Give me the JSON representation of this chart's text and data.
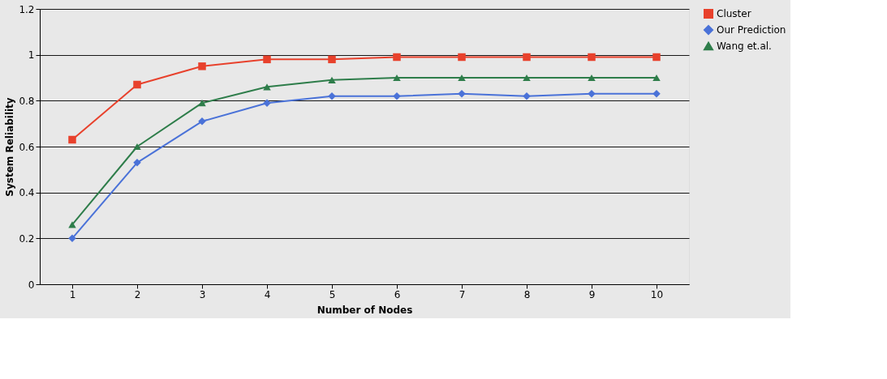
{
  "chart_data": {
    "type": "line",
    "xlabel": "Number of Nodes",
    "ylabel": "System Reliability",
    "categories": [
      "1",
      "2",
      "3",
      "4",
      "5",
      "6",
      "7",
      "8",
      "9",
      "10"
    ],
    "series": [
      {
        "name": "Cluster",
        "color": "#e8412c",
        "marker": "square",
        "values": [
          0.63,
          0.87,
          0.95,
          0.98,
          0.98,
          0.99,
          0.99,
          0.99,
          0.99,
          0.99
        ]
      },
      {
        "name": "Our Prediction",
        "color": "#4a72d8",
        "marker": "diamond",
        "values": [
          0.2,
          0.53,
          0.71,
          0.79,
          0.82,
          0.82,
          0.83,
          0.82,
          0.83,
          0.83
        ]
      },
      {
        "name": "Wang et.al.",
        "color": "#2e7d4a",
        "marker": "triangle",
        "values": [
          0.26,
          0.6,
          0.79,
          0.86,
          0.89,
          0.9,
          0.9,
          0.9,
          0.9,
          0.9
        ]
      }
    ],
    "ylim": [
      0,
      1.2
    ],
    "yticks": [
      0,
      0.2,
      0.4,
      0.6,
      0.8,
      1,
      1.2
    ],
    "grid": "y",
    "legend": "right",
    "line_style": "solid"
  }
}
